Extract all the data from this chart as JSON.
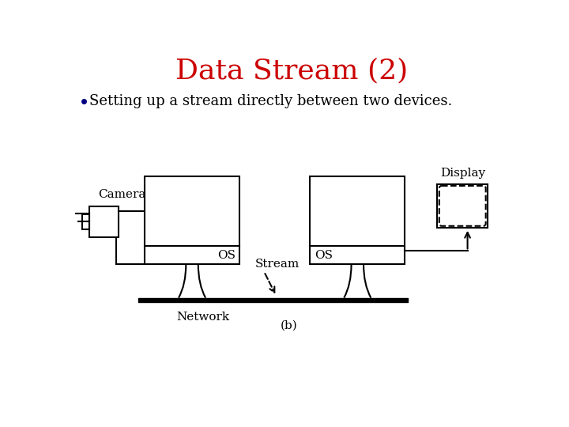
{
  "title": "Data Stream (2)",
  "title_color": "#cc0000",
  "title_fontsize": 26,
  "bullet_text": "Setting up a stream directly between two devices.",
  "bullet_color": "#000000",
  "bullet_fontsize": 13,
  "bullet_dot_color": "#000080",
  "bg_color": "#ffffff",
  "line_color": "#000000",
  "lw": 1.5,
  "diagram_labels": {
    "camera": "Camera",
    "os_left": "OS",
    "os_right": "OS",
    "network": "Network",
    "stream": "Stream",
    "b_label": "(b)",
    "display": "Display"
  }
}
